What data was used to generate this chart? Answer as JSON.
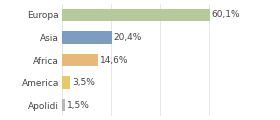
{
  "categories": [
    "Europa",
    "Asia",
    "Africa",
    "America",
    "Apolidi"
  ],
  "values": [
    60.1,
    20.4,
    14.6,
    3.5,
    1.5
  ],
  "labels": [
    "60,1%",
    "20,4%",
    "14,6%",
    "3,5%",
    "1,5%"
  ],
  "bar_colors": [
    "#b5c99a",
    "#7b9dc0",
    "#e8b87a",
    "#e8c96a",
    "#b8b8b8"
  ],
  "background_color": "#ffffff",
  "xlim": [
    0,
    75
  ],
  "label_fontsize": 6.5,
  "category_fontsize": 6.5,
  "bar_height": 0.55
}
